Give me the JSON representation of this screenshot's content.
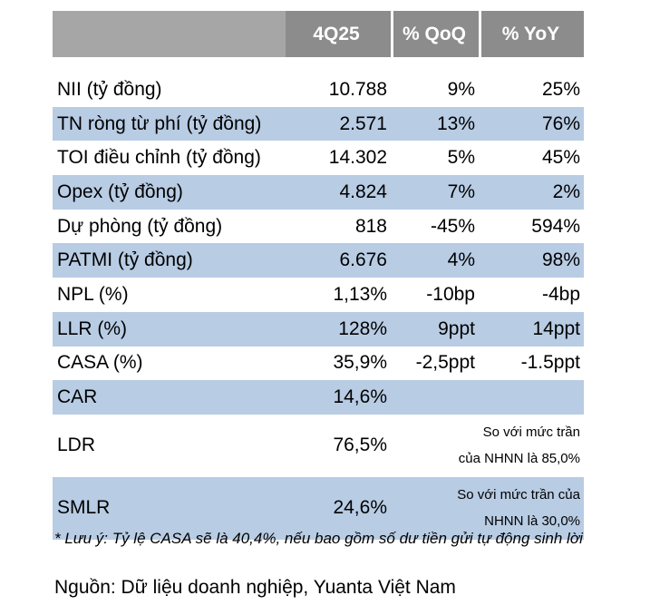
{
  "header": {
    "col0": "",
    "col1": "4Q25",
    "col2": "% QoQ",
    "col3": "% YoY"
  },
  "rows": [
    {
      "label": "NII (tỷ đồng)",
      "value": "10.788",
      "qoq": "9%",
      "yoy": "25%"
    },
    {
      "label": "TN ròng từ phí (tỷ đồng)",
      "value": "2.571",
      "qoq": "13%",
      "yoy": "76%"
    },
    {
      "label": "TOI điều chỉnh (tỷ đồng)",
      "value": "14.302",
      "qoq": "5%",
      "yoy": "45%"
    },
    {
      "label": "Opex (tỷ đồng)",
      "value": "4.824",
      "qoq": "7%",
      "yoy": "2%"
    },
    {
      "label": "Dự phòng (tỷ đồng)",
      "value": "818",
      "qoq": "-45%",
      "yoy": "594%"
    },
    {
      "label": "PATMI (tỷ đồng)",
      "value": "6.676",
      "qoq": "4%",
      "yoy": "98%"
    },
    {
      "label": "NPL (%)",
      "value": "1,13%",
      "qoq": "-10bp",
      "yoy": "-4bp"
    },
    {
      "label": "LLR (%)",
      "value": "128%",
      "qoq": "9ppt",
      "yoy": "14ppt"
    },
    {
      "label": "CASA (%)",
      "value": "35,9%",
      "qoq": "-2,5ppt",
      "yoy": "-1.5ppt"
    },
    {
      "label": "CAR",
      "value": "14,6%",
      "qoq": "",
      "yoy": ""
    },
    {
      "label": "LDR",
      "value": "76,5%",
      "remark_line1": "So với mức trần",
      "remark_line2": "của NHNN là 85,0%"
    },
    {
      "label": "SMLR",
      "value": "24,6%",
      "remark_line1": "So với mức trần của",
      "remark_line2": "NHNN là 30,0%"
    }
  ],
  "note": "* Lưu ý: Tỷ lệ CASA sẽ là 40,4%, nếu bao gồm số dư tiền gửi tự động sinh lời",
  "source": "Nguồn: Dữ liệu doanh nghiệp, Yuanta Việt Nam",
  "colors": {
    "header_bg": "#8c8c8c",
    "header_blank_bg": "#a6a6a6",
    "shaded_row_bg": "#b8cce4"
  }
}
